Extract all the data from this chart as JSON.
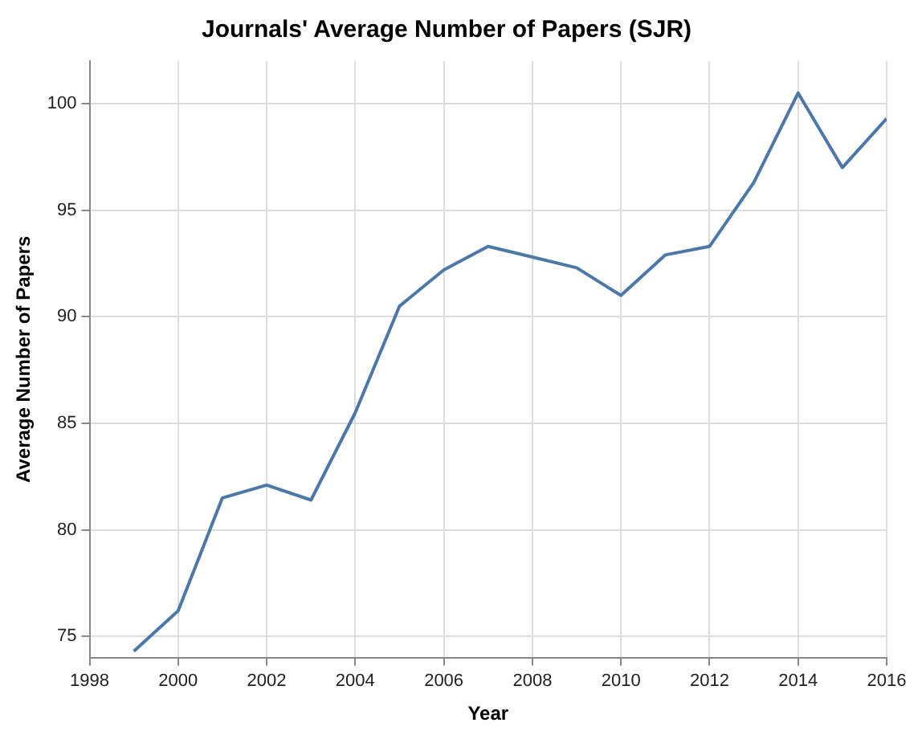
{
  "chart_data": {
    "type": "line",
    "title": "Journals' Average Number of Papers (SJR)",
    "xlabel": "Year",
    "ylabel": "Average Number of Papers",
    "x": [
      1999,
      2000,
      2001,
      2002,
      2003,
      2004,
      2005,
      2006,
      2007,
      2008,
      2009,
      2010,
      2011,
      2012,
      2013,
      2014,
      2015,
      2016
    ],
    "series": [
      {
        "color": "#4c78a8",
        "values": [
          74.3,
          76.2,
          81.5,
          82.1,
          81.4,
          85.5,
          90.5,
          92.2,
          93.3,
          92.8,
          92.3,
          91.0,
          92.9,
          93.3,
          96.3,
          100.5,
          97.0,
          99.3
        ]
      }
    ],
    "xlim": [
      1998,
      2016
    ],
    "xticks": [
      1998,
      2000,
      2002,
      2004,
      2006,
      2008,
      2010,
      2012,
      2014,
      2016
    ],
    "ylim": [
      74,
      102
    ],
    "yticks": [
      75,
      80,
      85,
      90,
      95,
      100
    ],
    "grid": true,
    "legend": false,
    "marker": "none",
    "line_style": "solid"
  }
}
